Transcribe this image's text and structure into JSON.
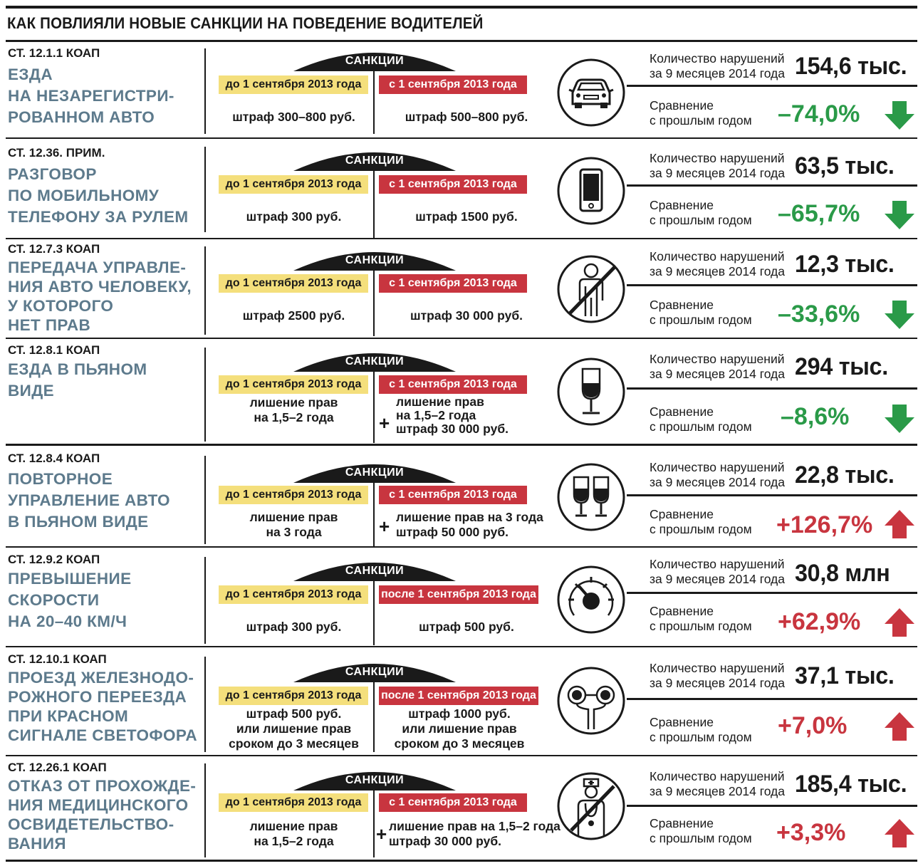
{
  "title": "КАК ПОВЛИЯЛИ НОВЫЕ САНКЦИИ НА ПОВЕДЕНИЕ ВОДИТЕЛЕЙ",
  "colors": {
    "offense_text": "#5d7a8c",
    "before_badge": "#f4df7c",
    "after_badge": "#c8353f",
    "down": "#2a9a48",
    "up": "#c8353f"
  },
  "labels": {
    "sanctions": "САНКЦИИ",
    "count_line1": "Количество нарушений",
    "count_line2": "за 9 месяцев 2014 года",
    "compare_line1": "Сравнение",
    "compare_line2": "с прошлым годом",
    "plus": "+"
  },
  "rows": [
    {
      "article": "СТ. 12.1.1 КОАП",
      "offense": [
        "ЕЗДА",
        "НА НЕЗАРЕГИСТРИ-",
        "РОВАННОМ АВТО"
      ],
      "before_label": "до 1 сентября 2013 года",
      "after_label": "с 1 сентября 2013 года",
      "before_penalty": [
        "штраф 300–800 руб."
      ],
      "after_penalty": [
        "штраф 500–800 руб."
      ],
      "icon": "car-icon",
      "count": "154,6 тыс.",
      "change": "–74,0%",
      "direction": "down"
    },
    {
      "article": "СТ. 12.36. ПРИМ.",
      "offense": [
        "РАЗГОВОР",
        "ПО МОБИЛЬНОМУ",
        "ТЕЛЕФОНУ ЗА РУЛЕМ"
      ],
      "before_label": "до 1 сентября 2013 года",
      "after_label": "с 1 сентября 2013 года",
      "before_penalty": [
        "штраф 300 руб."
      ],
      "after_penalty": [
        "штраф 1500 руб."
      ],
      "icon": "mobile-phone-icon",
      "count": "63,5 тыс.",
      "change": "–65,7%",
      "direction": "down"
    },
    {
      "article": "СТ. 12.7.3 КОАП",
      "offense": [
        "ПЕРЕДАЧА УПРАВЛЕ-",
        "НИЯ АВТО ЧЕЛОВЕКУ,",
        "У КОТОРОГО",
        "НЕТ ПРАВ"
      ],
      "before_label": "до 1 сентября 2013 года",
      "after_label": "с 1 сентября 2013 года",
      "before_penalty": [
        "штраф 2500 руб."
      ],
      "after_penalty": [
        "штраф 30 000 руб."
      ],
      "icon": "crossed-person-icon",
      "count": "12,3 тыс.",
      "change": "–33,6%",
      "direction": "down"
    },
    {
      "article": "СТ. 12.8.1 КОАП",
      "offense": [
        "ЕЗДА В ПЬЯНОМ",
        "ВИДЕ"
      ],
      "before_label": "до 1 сентября 2013 года",
      "after_label": "с 1 сентября 2013 года",
      "before_penalty": [
        "лишение прав",
        "на 1,5–2 года"
      ],
      "after_penalty": [
        "лишение прав",
        "на 1,5–2 года",
        "штраф 30 000 руб."
      ],
      "icon": "wine-glass-icon",
      "count": "294 тыс.",
      "change": "–8,6%",
      "direction": "down"
    },
    {
      "article": "СТ. 12.8.4 КОАП",
      "offense": [
        "ПОВТОРНОЕ",
        "УПРАВЛЕНИЕ АВТО",
        "В ПЬЯНОМ ВИДЕ"
      ],
      "before_label": "до 1 сентября 2013 года",
      "after_label": "с 1 сентября 2013 года",
      "before_penalty": [
        "лишение прав",
        "на 3 года"
      ],
      "after_penalty": [
        "лишение прав на 3 года",
        "штраф 50 000 руб."
      ],
      "icon": "two-wine-glasses-icon",
      "count": "22,8 тыс.",
      "change": "+126,7%",
      "direction": "up"
    },
    {
      "article": "СТ. 12.9.2 КОАП",
      "offense": [
        "ПРЕВЫШЕНИЕ",
        "СКОРОСТИ",
        "НА 20–40 КМ/Ч"
      ],
      "before_label": "до 1 сентября 2013 года",
      "after_label": "после 1 сентября 2013 года",
      "before_penalty": [
        "штраф 300 руб."
      ],
      "after_penalty": [
        "штраф 500 руб."
      ],
      "icon": "speedometer-icon",
      "count": "30,8 млн",
      "change": "+62,9%",
      "direction": "up"
    },
    {
      "article": "СТ. 12.10.1 КОАП",
      "offense": [
        "ПРОЕЗД ЖЕЛЕЗНОДО-",
        "РОЖНОГО ПЕРЕЕЗДА",
        "ПРИ КРАСНОМ",
        "СИГНАЛЕ СВЕТОФОРА"
      ],
      "before_label": "до 1 сентября 2013 года",
      "after_label": "после 1 сентября 2013 года",
      "before_penalty": [
        "штраф 500 руб.",
        "или лишение прав",
        "сроком до 3 месяцев"
      ],
      "after_penalty": [
        "штраф 1000 руб.",
        "или лишение прав",
        "сроком до 3 месяцев"
      ],
      "icon": "railway-signal-icon",
      "count": "37,1 тыс.",
      "change": "+7,0%",
      "direction": "up"
    },
    {
      "article": "СТ. 12.26.1 КОАП",
      "offense": [
        "ОТКАЗ ОТ ПРОХОЖДЕ-",
        "НИЯ МЕДИЦИНСКОГО",
        "ОСВИДЕТЕЛЬСТВО-",
        "ВАНИЯ"
      ],
      "before_label": "до 1 сентября 2013 года",
      "after_label": "с 1 сентября 2013 года",
      "before_penalty": [
        "лишение прав",
        "на 1,5–2 года"
      ],
      "after_penalty": [
        "лишение прав на 1,5–2 года",
        "штраф 30 000 руб."
      ],
      "icon": "crossed-doctor-icon",
      "count": "185,4 тыс.",
      "change": "+3,3%",
      "direction": "up"
    }
  ]
}
